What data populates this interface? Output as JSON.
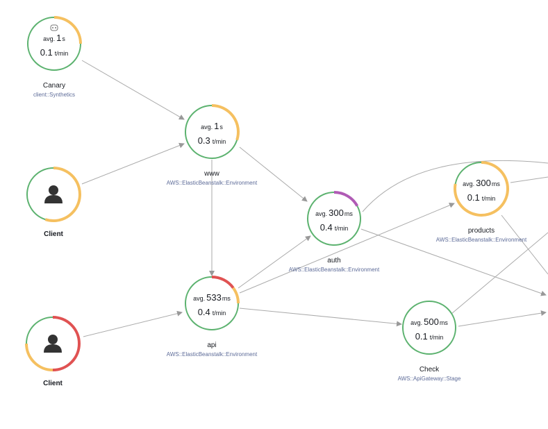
{
  "nodes": [
    {
      "name": "Canary",
      "type": "client::Synthetics",
      "avg_prefix": "avg.",
      "avg_value": "1",
      "avg_unit": "s",
      "rate_value": "0.1",
      "rate_unit": "t/min",
      "ring": [
        {
          "color": "#f5c060",
          "fraction": 0.25
        },
        {
          "color": "#5cb26f",
          "fraction": 0.75
        }
      ]
    },
    {
      "name": "www",
      "type": "AWS::ElasticBeanstalk::Environment",
      "avg_prefix": "avg.",
      "avg_value": "1",
      "avg_unit": "s",
      "rate_value": "0.3",
      "rate_unit": "t/min",
      "ring": [
        {
          "color": "#f5c060",
          "fraction": 0.3
        },
        {
          "color": "#5cb26f",
          "fraction": 0.7
        }
      ]
    },
    {
      "name": "Client",
      "ring": [
        {
          "color": "#f5c060",
          "fraction": 0.55
        },
        {
          "color": "#5cb26f",
          "fraction": 0.45
        }
      ]
    },
    {
      "name": "auth",
      "type": "AWS::ElasticBeanstalk::Environment",
      "avg_prefix": "avg.",
      "avg_value": "300",
      "avg_unit": "ms",
      "rate_value": "0.4",
      "rate_unit": "t/min",
      "ring": [
        {
          "color": "#b05bb5",
          "fraction": 0.17
        },
        {
          "color": "#5cb26f",
          "fraction": 0.83
        }
      ]
    },
    {
      "name": "products",
      "type": "AWS::ElasticBeanstalk::Environment",
      "avg_prefix": "avg.",
      "avg_value": "300",
      "avg_unit": "ms",
      "rate_value": "0.1",
      "rate_unit": "t/min",
      "ring": [
        {
          "color": "#f5c060",
          "fraction": 0.78
        },
        {
          "color": "#5cb26f",
          "fraction": 0.22
        }
      ]
    },
    {
      "name": "api",
      "type": "AWS::ElasticBeanstalk::Environment",
      "avg_prefix": "avg.",
      "avg_value": "533",
      "avg_unit": "ms",
      "rate_value": "0.4",
      "rate_unit": "t/min",
      "ring": [
        {
          "color": "#e05252",
          "fraction": 0.15
        },
        {
          "color": "#f5c060",
          "fraction": 0.1
        },
        {
          "color": "#5cb26f",
          "fraction": 0.75
        }
      ]
    },
    {
      "name": "Client",
      "ring": [
        {
          "color": "#e05252",
          "fraction": 0.5
        },
        {
          "color": "#f5c060",
          "fraction": 0.25
        },
        {
          "color": "#5cb26f",
          "fraction": 0.25
        }
      ]
    },
    {
      "name": "Check",
      "type": "AWS::ApiGateway::Stage",
      "avg_prefix": "avg.",
      "avg_value": "500",
      "avg_unit": "ms",
      "rate_value": "0.1",
      "rate_unit": "t/min",
      "ring": [
        {
          "color": "#5cb26f",
          "fraction": 1
        }
      ]
    }
  ]
}
